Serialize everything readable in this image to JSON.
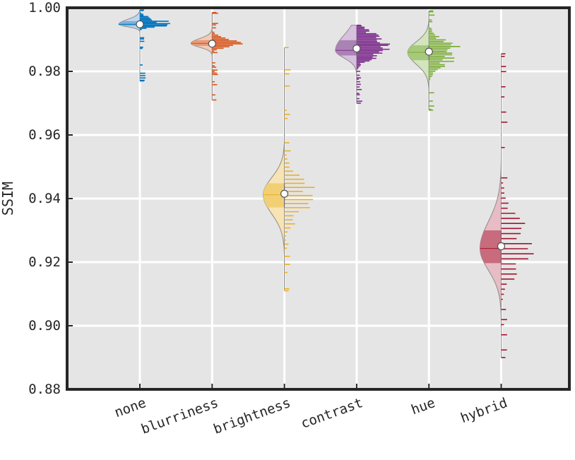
{
  "chart_data": {
    "type": "violin",
    "title": "",
    "xlabel": "",
    "ylabel": "SSIM",
    "ylim": [
      0.88,
      1.0
    ],
    "yticks": [
      0.88,
      0.9,
      0.92,
      0.94,
      0.96,
      0.98,
      1.0
    ],
    "ytick_labels": [
      "0.88",
      "0.90",
      "0.92",
      "0.94",
      "0.96",
      "0.98",
      "1.00"
    ],
    "grid": true,
    "legend": "none",
    "background_color": "#e5e5e5",
    "categories": [
      "none",
      "blurriness",
      "brightness",
      "contrast",
      "hue",
      "hybrid"
    ],
    "series": [
      {
        "category": "none",
        "color": "#0072bd",
        "light": "#bcd6ec",
        "mid": "#7fb0d8",
        "min": 0.977,
        "q1": 0.9943,
        "median": 0.9948,
        "q3": 0.9958,
        "max": 0.9993,
        "mean": 0.9948
      },
      {
        "category": "blurriness",
        "color": "#d95319",
        "light": "#f4cbb7",
        "mid": "#e89a77",
        "min": 0.971,
        "q1": 0.988,
        "median": 0.9888,
        "q3": 0.9898,
        "max": 0.9985,
        "mean": 0.9887
      },
      {
        "category": "brightness",
        "color": "#edb120",
        "light": "#f8e3b4",
        "mid": "#f1cf75",
        "min": 0.911,
        "q1": 0.9372,
        "median": 0.9412,
        "q3": 0.9448,
        "max": 0.9875,
        "mean": 0.9415
      },
      {
        "category": "contrast",
        "color": "#7e2f8e",
        "light": "#d7c0dd",
        "mid": "#ab82b4",
        "min": 0.97,
        "q1": 0.985,
        "median": 0.9866,
        "q3": 0.9898,
        "max": 0.9945,
        "mean": 0.9872
      },
      {
        "category": "hue",
        "color": "#77ac30",
        "light": "#d3e5bd",
        "mid": "#a7c97b",
        "min": 0.9678,
        "q1": 0.9835,
        "median": 0.986,
        "q3": 0.9882,
        "max": 0.999,
        "mean": 0.9862
      },
      {
        "category": "hybrid",
        "color": "#a2142f",
        "light": "#e7bcc4",
        "mid": "#c86b7d",
        "min": 0.89,
        "q1": 0.9197,
        "median": 0.9243,
        "q3": 0.93,
        "max": 0.9855,
        "mean": 0.925
      }
    ]
  }
}
